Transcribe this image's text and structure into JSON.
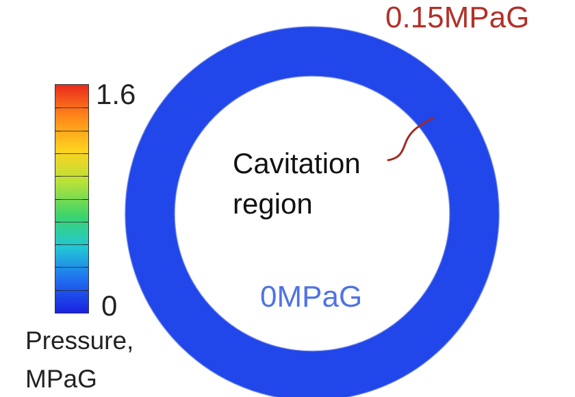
{
  "colorbar": {
    "max_label": "1.6",
    "min_label": "0",
    "title_line1": "Pressure,",
    "title_line2": "MPaG",
    "colors": [
      "#1a22e0",
      "#1f6df0",
      "#22c6d6",
      "#3ed46a",
      "#b6e23a",
      "#ffd21e",
      "#ff8a1a",
      "#ea2a1c"
    ],
    "tick_count": 10
  },
  "ring": {
    "color": "#2147ea",
    "shade_color": "#1f44e4"
  },
  "annotations": {
    "outer_pressure": "0.15MPaG",
    "outer_pressure_color": "#b23028",
    "cavitation_line1": "Cavitation",
    "cavitation_line2": "region",
    "leader_color": "#a02a20",
    "inner_pressure": "0MPaG",
    "inner_pressure_color": "#4f73e6"
  }
}
